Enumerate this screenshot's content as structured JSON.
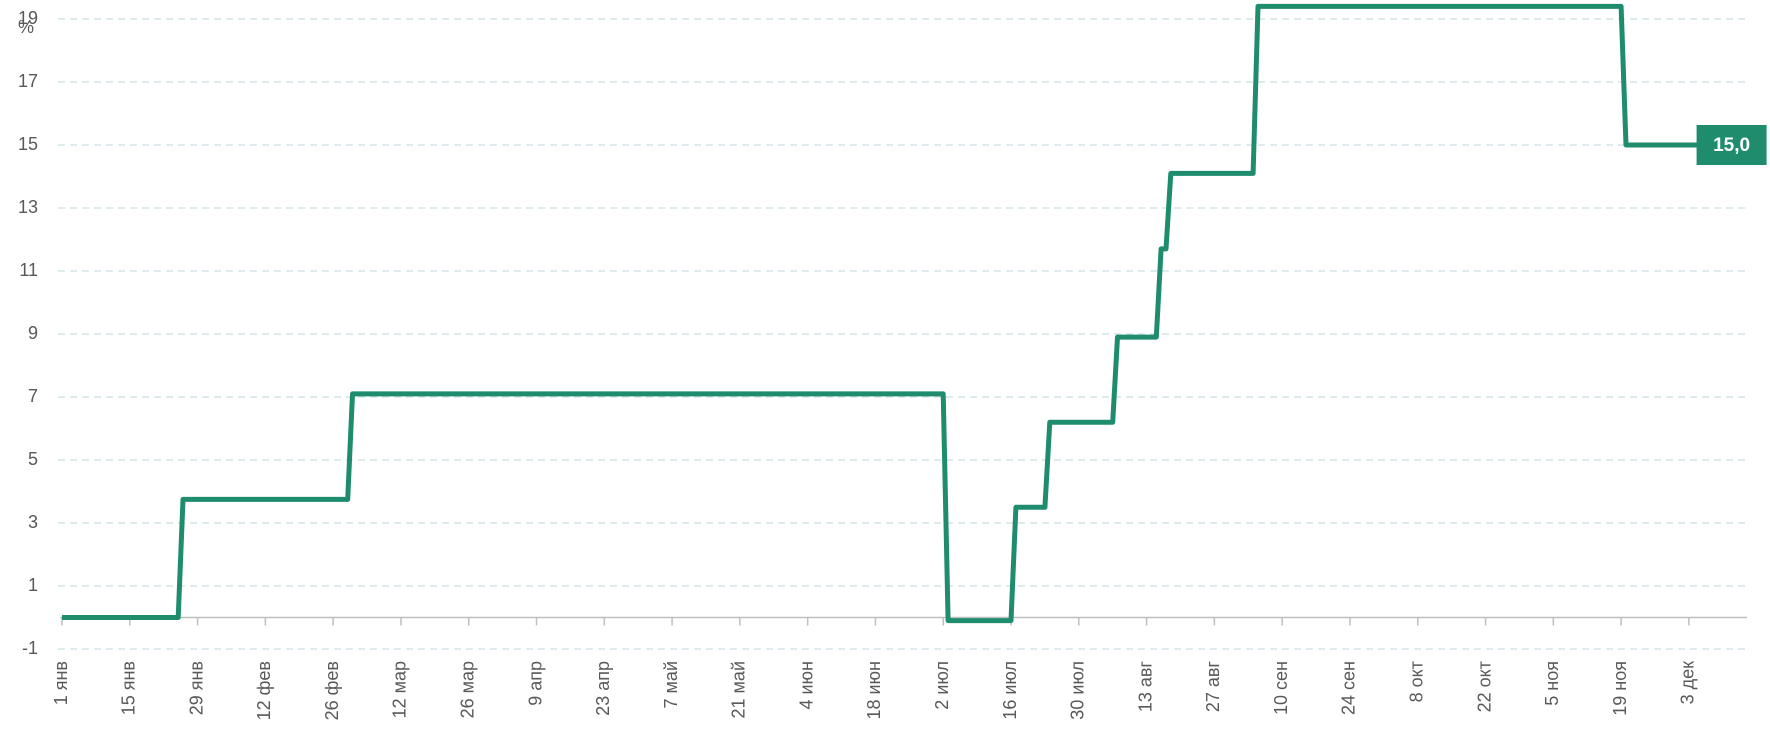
{
  "chart_data": {
    "type": "line",
    "y_label": "%",
    "x": [
      "01-01",
      "01-25",
      "01-26",
      "03-01",
      "03-02",
      "07-02",
      "07-03",
      "07-16",
      "07-17",
      "07-23",
      "07-24",
      "08-06",
      "08-07",
      "08-15",
      "08-16",
      "08-17",
      "08-18",
      "09-04",
      "09-05",
      "11-19",
      "11-20",
      "12-05"
    ],
    "values": [
      0,
      0,
      3.75,
      3.75,
      7.1,
      7.1,
      -0.1,
      -0.1,
      3.5,
      3.5,
      6.2,
      6.2,
      8.9,
      8.9,
      11.7,
      11.7,
      14.1,
      14.1,
      19.4,
      19.4,
      15,
      15
    ],
    "value_labels": [
      null,
      null,
      null,
      null,
      null,
      null,
      null,
      null,
      null,
      null,
      null,
      null,
      null,
      null,
      null,
      null,
      null,
      null,
      null,
      null,
      null,
      "15,0"
    ],
    "color": "#1f8c6e",
    "xlim": [
      "01-01",
      "12-15"
    ],
    "xticks": [
      {
        "value": "01-01",
        "label": "1 янв"
      },
      {
        "value": "01-15",
        "label": "15 янв"
      },
      {
        "value": "01-29",
        "label": "29 янв"
      },
      {
        "value": "02-12",
        "label": "12 фев"
      },
      {
        "value": "02-26",
        "label": "26 фев"
      },
      {
        "value": "03-12",
        "label": "12 мар"
      },
      {
        "value": "03-26",
        "label": "26 мар"
      },
      {
        "value": "04-09",
        "label": "9 апр"
      },
      {
        "value": "04-23",
        "label": "23 апр"
      },
      {
        "value": "05-07",
        "label": "7 май"
      },
      {
        "value": "05-21",
        "label": "21 май"
      },
      {
        "value": "06-04",
        "label": "4 июн"
      },
      {
        "value": "06-18",
        "label": "18 июн"
      },
      {
        "value": "07-02",
        "label": "2 июл"
      },
      {
        "value": "07-16",
        "label": "16 июл"
      },
      {
        "value": "07-30",
        "label": "30 июл"
      },
      {
        "value": "08-13",
        "label": "13 авг"
      },
      {
        "value": "08-27",
        "label": "27 авг"
      },
      {
        "value": "09-10",
        "label": "10 сен"
      },
      {
        "value": "09-24",
        "label": "24 сен"
      },
      {
        "value": "10-08",
        "label": "8 окт"
      },
      {
        "value": "10-22",
        "label": "22 окт"
      },
      {
        "value": "11-05",
        "label": "5 ноя"
      },
      {
        "value": "11-19",
        "label": "19 ноя"
      },
      {
        "value": "12-03",
        "label": "3 дек"
      }
    ],
    "ylim": [
      -1,
      19
    ],
    "yticks": [
      -1,
      1,
      3,
      5,
      7,
      9,
      11,
      13,
      15,
      17,
      19
    ],
    "grid": true
  }
}
